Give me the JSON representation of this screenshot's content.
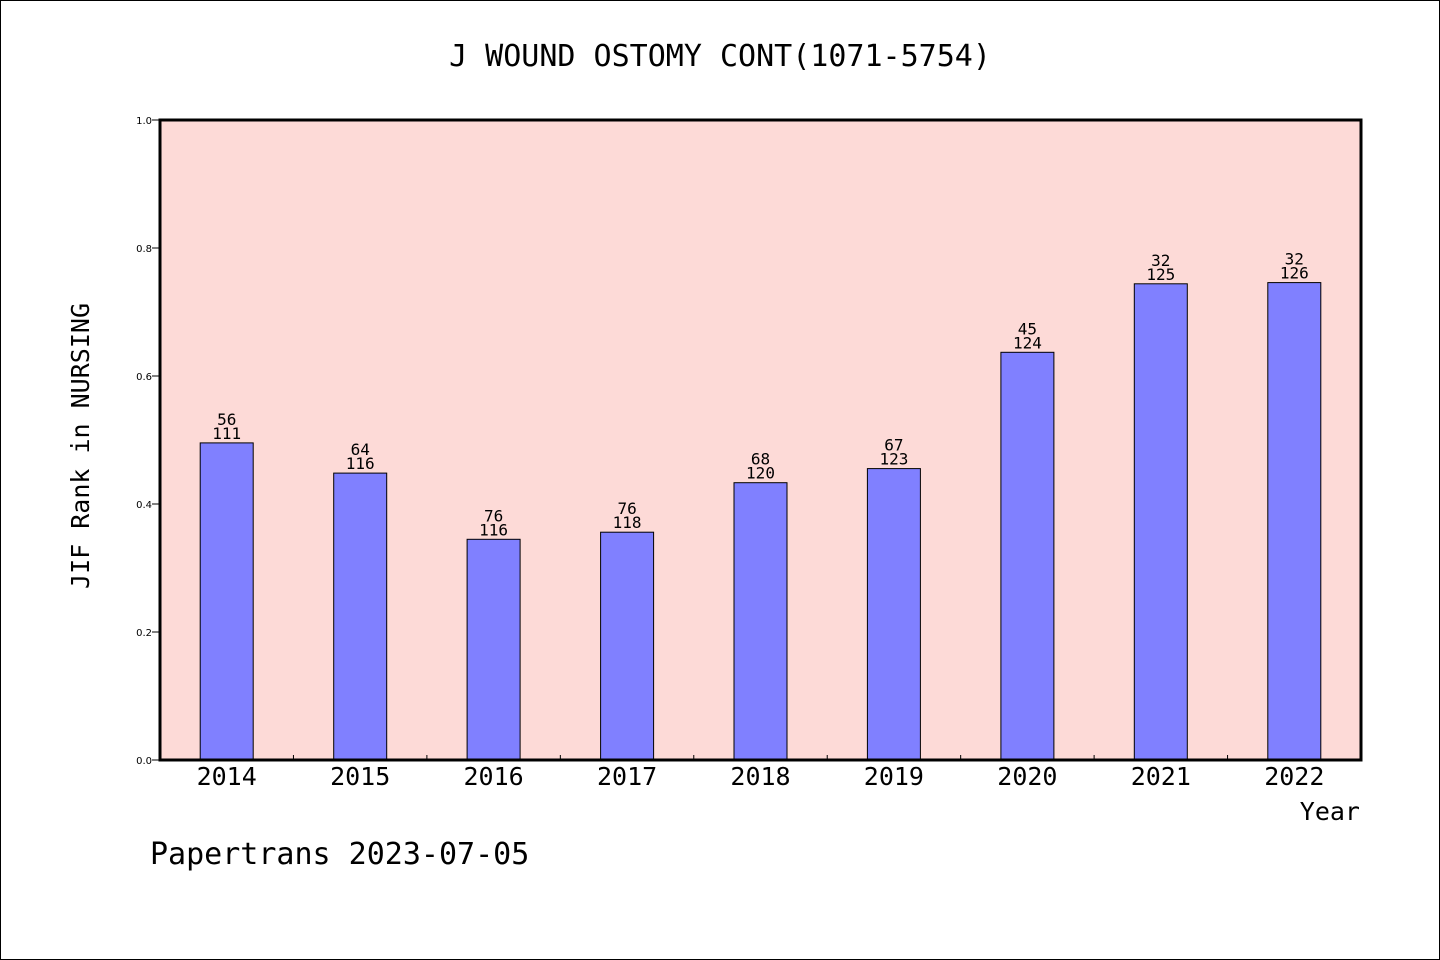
{
  "chart_data": {
    "type": "bar",
    "title": "J WOUND OSTOMY CONT(1071-5754)",
    "ylabel": "JIF Rank in NURSING",
    "xlabel": "Year",
    "ylim": [
      0,
      1.0
    ],
    "yticks": [
      "0.0",
      "0.2",
      "0.4",
      "0.6",
      "0.8",
      "1.0"
    ],
    "categories": [
      "2014",
      "2015",
      "2016",
      "2017",
      "2018",
      "2019",
      "2020",
      "2021",
      "2022"
    ],
    "values": [
      0.4955,
      0.4483,
      0.3448,
      0.3559,
      0.4333,
      0.4553,
      0.6371,
      0.744,
      0.746
    ],
    "rank_labels": [
      "56",
      "64",
      "76",
      "76",
      "68",
      "67",
      "45",
      "32",
      "32"
    ],
    "total_labels": [
      "111",
      "116",
      "116",
      "118",
      "120",
      "123",
      "124",
      "125",
      "126"
    ],
    "colors": {
      "bar": "#8080ff",
      "plot_background": "#fddad7",
      "axis": "#000000"
    },
    "grid": false,
    "legend": "none"
  },
  "footer": "Papertrans 2023-07-05"
}
